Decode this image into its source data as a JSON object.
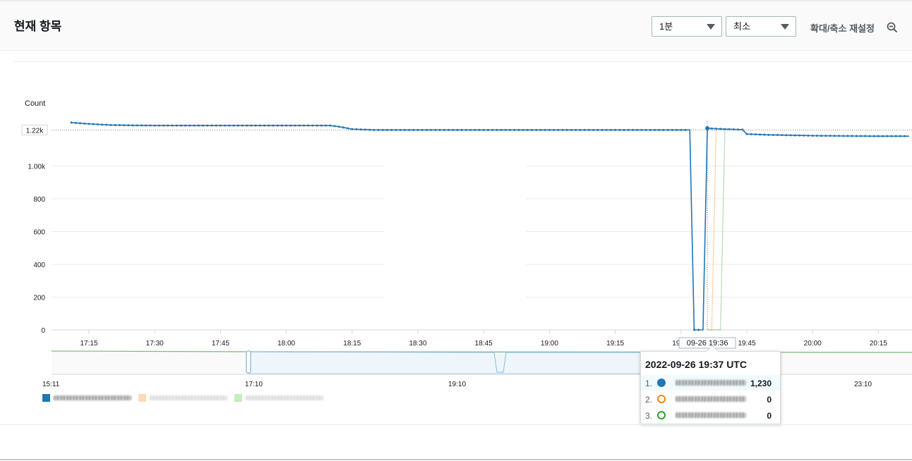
{
  "header": {
    "title": "현재 항목",
    "period_select": "1분",
    "stat_select": "최소",
    "zoom_reset_label": "확대/축소 재설정",
    "zoom_icon": "zoom-out-icon"
  },
  "chart_data": {
    "type": "line",
    "ylabel": "Count",
    "ylim": [
      0,
      1400
    ],
    "yticks": [
      "0",
      "200",
      "400",
      "600",
      "800",
      "1.00k",
      "1.20k"
    ],
    "y_marker_label": "1.22k",
    "y_marker_value": 1220,
    "xticks": [
      "17:15",
      "17:30",
      "17:45",
      "18:00",
      "18:15",
      "18:30",
      "18:45",
      "19:00",
      "19:15",
      "19:30",
      "19:45",
      "20:00",
      "20:15"
    ],
    "cursor_label": "09-26 19:36",
    "grid": true,
    "series": [
      {
        "color": "#1f77b4",
        "points": [
          [
            "17:11",
            1265
          ],
          [
            "17:15",
            1257
          ],
          [
            "17:20",
            1250
          ],
          [
            "17:25",
            1248
          ],
          [
            "17:30",
            1247
          ],
          [
            "17:40",
            1247
          ],
          [
            "17:50",
            1247
          ],
          [
            "18:00",
            1247
          ],
          [
            "18:10",
            1247
          ],
          [
            "18:12",
            1240
          ],
          [
            "18:15",
            1225
          ],
          [
            "18:20",
            1220
          ],
          [
            "18:30",
            1220
          ],
          [
            "18:45",
            1220
          ],
          [
            "19:00",
            1220
          ],
          [
            "19:15",
            1220
          ],
          [
            "19:30",
            1220
          ],
          [
            "19:32",
            1220
          ],
          [
            "19:33",
            0
          ],
          [
            "19:35",
            0
          ],
          [
            "19:36",
            1230
          ],
          [
            "19:40",
            1225
          ],
          [
            "19:44",
            1222
          ],
          [
            "19:45",
            1195
          ],
          [
            "19:50",
            1190
          ],
          [
            "20:00",
            1185
          ],
          [
            "20:10",
            1183
          ],
          [
            "20:15",
            1182
          ],
          [
            "20:22",
            1182
          ]
        ]
      },
      {
        "color": "#ff7f0e",
        "points": [
          [
            "19:36",
            0
          ],
          [
            "19:37",
            0
          ],
          [
            "19:38",
            1220
          ]
        ]
      },
      {
        "color": "#2ca02c",
        "points": [
          [
            "19:36",
            0
          ],
          [
            "19:39",
            0
          ],
          [
            "19:40",
            1220
          ]
        ]
      }
    ],
    "navigator": {
      "xticks": [
        "15:11",
        "17:10",
        "19:10",
        "23:10"
      ]
    },
    "tooltip": {
      "time": "2022-09-26 19:37 UTC",
      "rows": [
        {
          "index": "1.",
          "value": "1,230",
          "color": "#1f77b4",
          "filled": true
        },
        {
          "index": "2.",
          "value": "0",
          "color": "#ff7f0e",
          "filled": false
        },
        {
          "index": "3.",
          "value": "0",
          "color": "#2ca02c",
          "filled": false
        }
      ]
    },
    "legend": {
      "placement": "bottom-left"
    }
  }
}
